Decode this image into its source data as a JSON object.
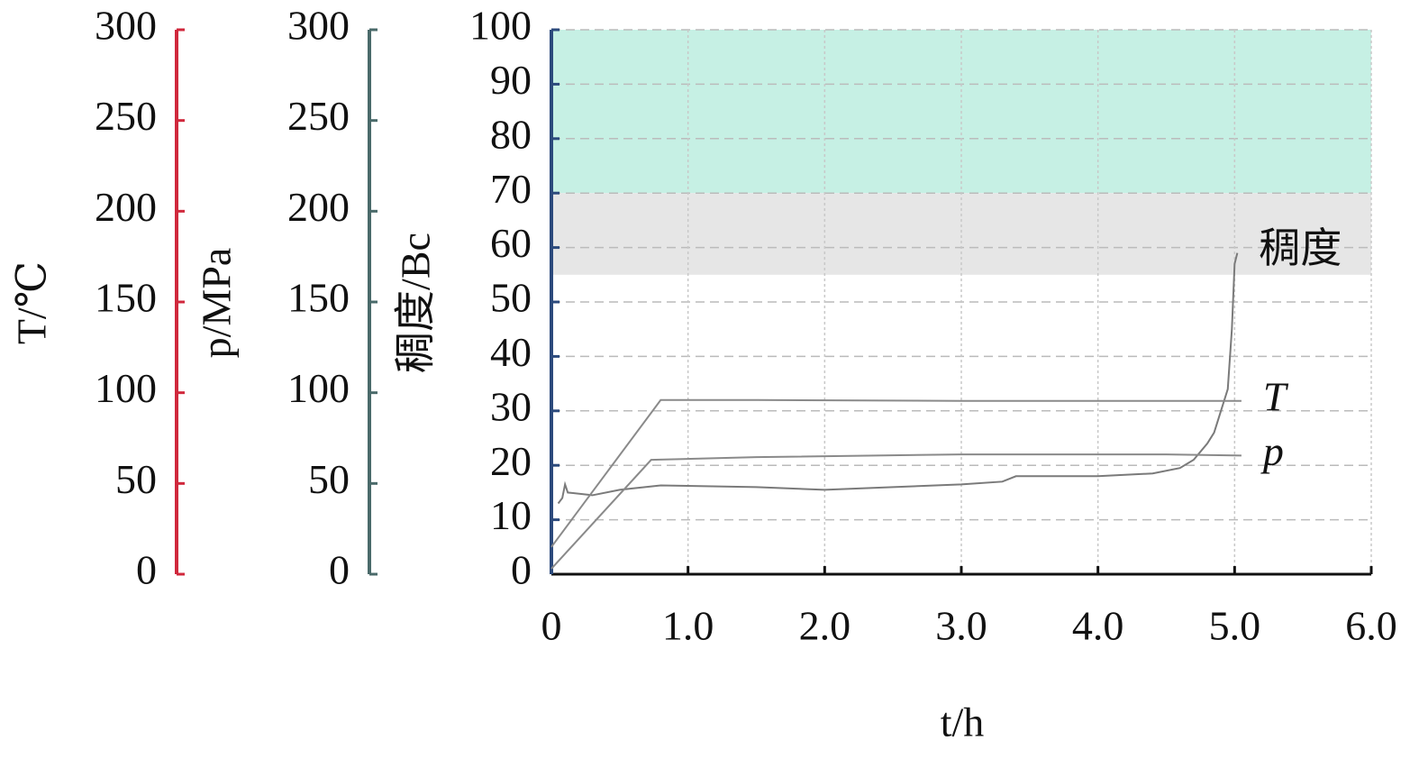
{
  "chart_data": {
    "type": "line",
    "x_label": "t/h",
    "y_label": "稠度/Bc",
    "y2_label": "p/MPa",
    "y3_label": "T/℃",
    "xlim": [
      0,
      6
    ],
    "xticks": [
      0,
      {
        "value": 1,
        "label": "1.0"
      },
      {
        "value": 2,
        "label": "2.0"
      },
      {
        "value": 3,
        "label": "3.0"
      },
      {
        "value": 4,
        "label": "4.0"
      },
      {
        "value": 5,
        "label": "5.0"
      },
      {
        "value": 6,
        "label": "6.0"
      }
    ],
    "ylim": [
      0,
      100
    ],
    "yticks": [
      0,
      10,
      20,
      30,
      40,
      50,
      60,
      70,
      80,
      90,
      100
    ],
    "y2lim": [
      0,
      300
    ],
    "y2ticks": [
      0,
      50,
      100,
      150,
      200,
      250,
      300
    ],
    "y3lim": [
      0,
      300
    ],
    "y3ticks": [
      0,
      50,
      100,
      150,
      200,
      250,
      300
    ],
    "ycolor": "#2c4a7c",
    "y2color": "#4a6a6a",
    "y3color": "#d0283c",
    "grid": true,
    "bands": [
      {
        "from": 70,
        "to": 100,
        "color": "#c6f0e4"
      },
      {
        "from": 55,
        "to": 70,
        "color": "#e6e6e6"
      }
    ],
    "series": [
      {
        "name": "稠度",
        "color": "#7a7a7a",
        "x": [
          0.05,
          0.08,
          0.1,
          0.12,
          0.3,
          0.5,
          0.8,
          1.5,
          2,
          2.5,
          3,
          3.3,
          3.4,
          3.5,
          4,
          4.4,
          4.6,
          4.7,
          4.8,
          4.85,
          4.9,
          4.95,
          4.98,
          5.0,
          5.02
        ],
        "values": [
          13,
          14,
          16.5,
          15,
          14.5,
          15.5,
          16.3,
          16,
          15.5,
          16,
          16.5,
          17,
          18,
          18,
          18,
          18.5,
          19.5,
          21,
          24,
          26,
          30,
          34,
          45,
          57,
          59
        ]
      },
      {
        "name": "T",
        "color": "#8a8a8a",
        "axis": "y3",
        "x": [
          0,
          0.8,
          1.5,
          3,
          5.05
        ],
        "values": [
          15,
          96,
          96,
          95.5,
          95.5
        ]
      },
      {
        "name": "p",
        "color": "#8a8a8a",
        "axis": "y2",
        "x": [
          0,
          0.73,
          1.5,
          3,
          4.5,
          5.05
        ],
        "values": [
          3,
          63,
          64.5,
          66,
          66,
          65.4
        ]
      }
    ]
  }
}
